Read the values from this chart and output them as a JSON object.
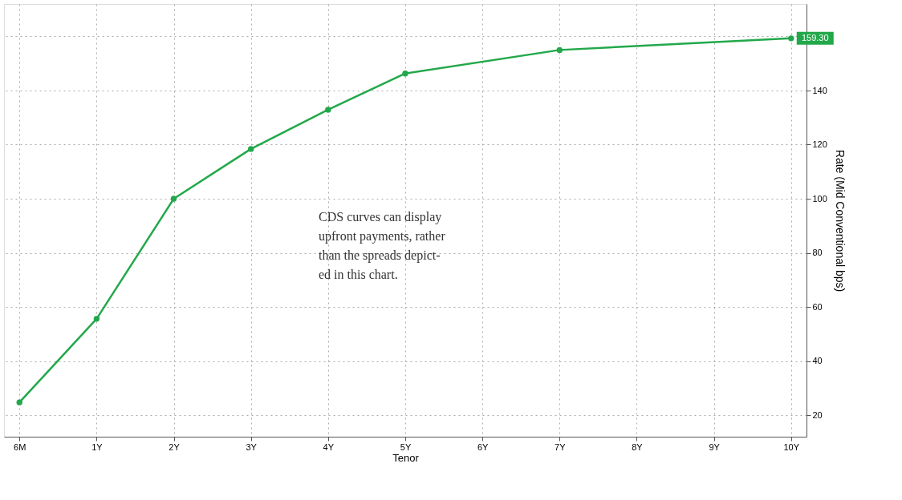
{
  "chart_data": {
    "type": "line",
    "xlabel": "Tenor",
    "ylabel": "Rate (Mid Conventional bps)",
    "categories": [
      "6M",
      "1Y",
      "2Y",
      "3Y",
      "4Y",
      "5Y",
      "6Y",
      "7Y",
      "8Y",
      "9Y",
      "10Y"
    ],
    "series": [
      {
        "color": "#22a84a",
        "values": [
          24.7,
          55.6,
          100,
          118.4,
          132.9,
          146.3,
          null,
          155,
          null,
          null,
          159.3
        ]
      }
    ],
    "ylim": [
      12,
      172
    ],
    "yticks": [
      20,
      40,
      60,
      80,
      100,
      120,
      140,
      {
        "value": 160,
        "label": null
      }
    ],
    "grid": true,
    "marker": "circle",
    "line_style": "solid",
    "annotations": [
      {
        "text": "159.30",
        "x": "10Y",
        "y": 159.3
      },
      "CDS curves can display\nupfront payments, rather\nthan the spreads depict-\ned in this chart."
    ]
  }
}
